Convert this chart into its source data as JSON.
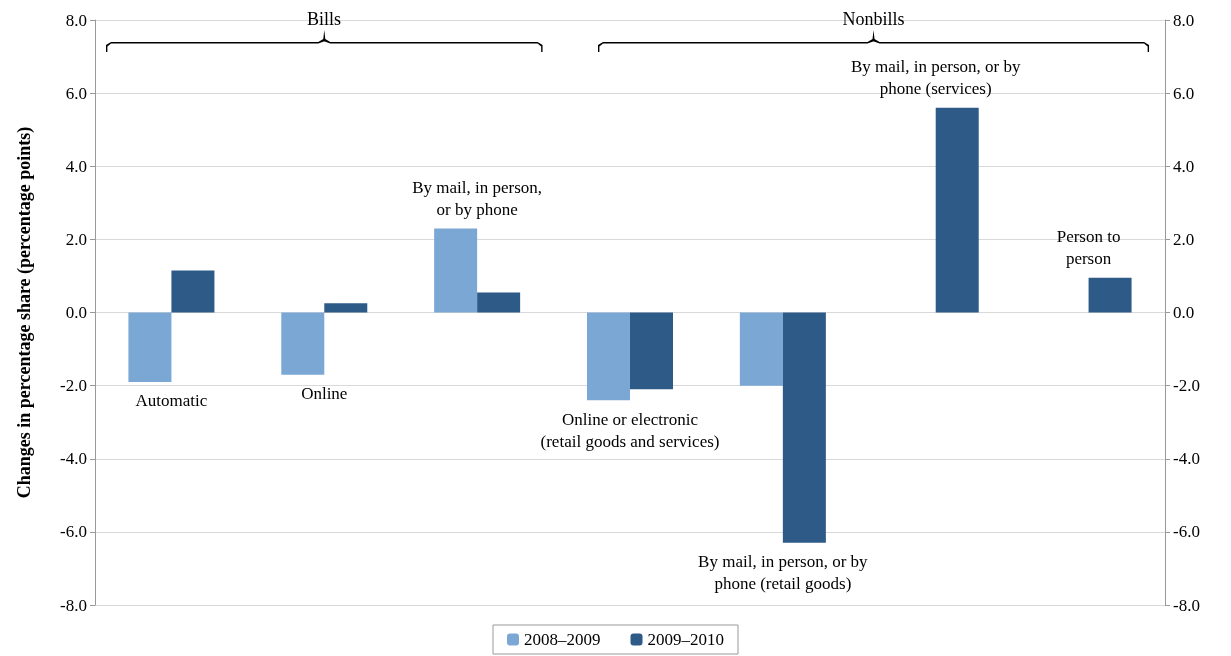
{
  "chart_data": {
    "type": "bar",
    "ylabel": "Changes in percentage share (percentage points)",
    "categories": [
      "Automatic",
      "Online",
      "By mail, in person,\nor by phone",
      "Online or electronic\n(retail goods and services)",
      "By mail, in person, or by\nphone (retail goods)",
      "By mail, in person, or by\nphone (services)",
      "Person to\nperson"
    ],
    "series": [
      {
        "name": "2008–2009",
        "color": "#7ba7d4",
        "values": [
          -1.9,
          -1.7,
          2.3,
          -2.4,
          -2.0,
          null,
          null
        ]
      },
      {
        "name": "2009–2010",
        "color": "#2e5a87",
        "values": [
          1.15,
          0.25,
          0.55,
          -2.1,
          -6.3,
          5.6,
          0.95
        ]
      }
    ],
    "ylim": [
      -8,
      8
    ],
    "yticks": [
      {
        "value": -8,
        "label": "-8.0"
      },
      {
        "value": -6,
        "label": "-6.0"
      },
      {
        "value": -4,
        "label": "-4.0"
      },
      {
        "value": -2,
        "label": "-2.0"
      },
      {
        "value": 0,
        "label": "0.0"
      },
      {
        "value": 2,
        "label": "2.0"
      },
      {
        "value": 4,
        "label": "4.0"
      },
      {
        "value": 6,
        "label": "6.0"
      },
      {
        "value": 8,
        "label": "8.0"
      }
    ],
    "y2lim": [
      -8,
      8
    ],
    "y2ticks": [
      {
        "value": -8,
        "label": "-8.0"
      },
      {
        "value": -6,
        "label": "-6.0"
      },
      {
        "value": -4,
        "label": "-4.0"
      },
      {
        "value": -2,
        "label": "-2.0"
      },
      {
        "value": 0,
        "label": "0.0"
      },
      {
        "value": 2,
        "label": "2.0"
      },
      {
        "value": 4,
        "label": "4.0"
      },
      {
        "value": 6,
        "label": "6.0"
      },
      {
        "value": 8,
        "label": "8.0"
      }
    ],
    "annotations": [
      "Bills",
      "Nonbills"
    ],
    "grid": "y",
    "legend": "bottom"
  }
}
